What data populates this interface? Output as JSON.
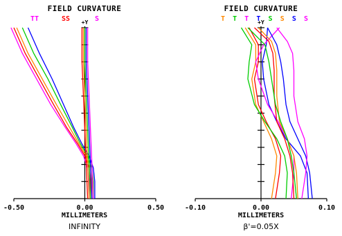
{
  "chart_data": [
    {
      "type": "line",
      "title": "FIELD CURVATURE",
      "xlabel": "MILLIMETERS",
      "caption": "INFINITY",
      "yaxis_label": "+Y",
      "xlim": [
        -0.5,
        0.5
      ],
      "ylim": [
        0,
        1
      ],
      "x_ticks": [
        "-0.50",
        "0.00",
        "0.50"
      ],
      "grid": false,
      "legend_labels": [
        {
          "text": "TT",
          "color": "#ff00ff"
        },
        {
          "text": "SS",
          "color": "#ff0000"
        },
        {
          "text": "S",
          "color": "#ff00ff"
        }
      ],
      "series": [
        {
          "color": "#ff0000",
          "points": [
            [
              -0.5,
              1.0
            ],
            [
              -0.42,
              0.85
            ],
            [
              -0.32,
              0.7
            ],
            [
              -0.22,
              0.55
            ],
            [
              -0.13,
              0.42
            ],
            [
              -0.05,
              0.32
            ],
            [
              0.0,
              0.25
            ],
            [
              0.03,
              0.18
            ],
            [
              0.04,
              0.1
            ],
            [
              0.04,
              0.0
            ]
          ]
        },
        {
          "color": "#ff8800",
          "points": [
            [
              -0.48,
              1.0
            ],
            [
              -0.4,
              0.85
            ],
            [
              -0.3,
              0.7
            ],
            [
              -0.2,
              0.55
            ],
            [
              -0.11,
              0.42
            ],
            [
              -0.04,
              0.32
            ],
            [
              0.01,
              0.25
            ],
            [
              0.04,
              0.18
            ],
            [
              0.05,
              0.1
            ],
            [
              0.05,
              0.0
            ]
          ]
        },
        {
          "color": "#00cc00",
          "points": [
            [
              -0.44,
              1.0
            ],
            [
              -0.36,
              0.85
            ],
            [
              -0.26,
              0.7
            ],
            [
              -0.17,
              0.55
            ],
            [
              -0.09,
              0.42
            ],
            [
              -0.03,
              0.32
            ],
            [
              0.02,
              0.25
            ],
            [
              0.05,
              0.18
            ],
            [
              0.06,
              0.1
            ],
            [
              0.06,
              0.0
            ]
          ]
        },
        {
          "color": "#0000ff",
          "points": [
            [
              -0.4,
              1.0
            ],
            [
              -0.32,
              0.85
            ],
            [
              -0.23,
              0.7
            ],
            [
              -0.15,
              0.55
            ],
            [
              -0.08,
              0.42
            ],
            [
              -0.02,
              0.32
            ],
            [
              0.03,
              0.25
            ],
            [
              0.06,
              0.18
            ],
            [
              0.07,
              0.1
            ],
            [
              0.07,
              0.0
            ]
          ]
        },
        {
          "color": "#ff00ff",
          "points": [
            [
              -0.52,
              1.0
            ],
            [
              -0.44,
              0.85
            ],
            [
              -0.34,
              0.7
            ],
            [
              -0.24,
              0.55
            ],
            [
              -0.14,
              0.42
            ],
            [
              -0.06,
              0.32
            ],
            [
              -0.01,
              0.25
            ],
            [
              0.02,
              0.18
            ],
            [
              0.03,
              0.1
            ],
            [
              0.03,
              0.0
            ]
          ]
        },
        {
          "color": "#ff0000",
          "points": [
            [
              -0.02,
              1.0
            ],
            [
              -0.02,
              0.8
            ],
            [
              -0.01,
              0.6
            ],
            [
              0.0,
              0.4
            ],
            [
              0.01,
              0.2
            ],
            [
              0.02,
              0.0
            ]
          ]
        },
        {
          "color": "#ff8800",
          "points": [
            [
              -0.01,
              1.0
            ],
            [
              -0.01,
              0.8
            ],
            [
              0.0,
              0.6
            ],
            [
              0.01,
              0.4
            ],
            [
              0.02,
              0.2
            ],
            [
              0.03,
              0.0
            ]
          ]
        },
        {
          "color": "#00cc00",
          "points": [
            [
              0.0,
              1.0
            ],
            [
              0.0,
              0.8
            ],
            [
              0.01,
              0.6
            ],
            [
              0.02,
              0.4
            ],
            [
              0.03,
              0.2
            ],
            [
              0.04,
              0.0
            ]
          ]
        },
        {
          "color": "#0000ff",
          "points": [
            [
              0.01,
              1.0
            ],
            [
              0.01,
              0.8
            ],
            [
              0.02,
              0.6
            ],
            [
              0.03,
              0.4
            ],
            [
              0.04,
              0.2
            ],
            [
              0.05,
              0.0
            ]
          ]
        },
        {
          "color": "#ff00ff",
          "points": [
            [
              0.02,
              1.0
            ],
            [
              0.02,
              0.8
            ],
            [
              0.03,
              0.6
            ],
            [
              0.04,
              0.4
            ],
            [
              0.05,
              0.2
            ],
            [
              0.06,
              0.0
            ]
          ]
        }
      ]
    },
    {
      "type": "line",
      "title": "FIELD CURVATURE",
      "xlabel": "MILLIMETERS",
      "caption": "β'=0.05X",
      "yaxis_label": "+Y",
      "xlim": [
        -0.1,
        0.1
      ],
      "ylim": [
        0,
        1
      ],
      "x_ticks": [
        "-0.10",
        "0.00",
        "0.10"
      ],
      "grid": false,
      "legend_labels": [
        {
          "text": "T",
          "color": "#ff8800"
        },
        {
          "text": "T",
          "color": "#00cc00"
        },
        {
          "text": "T",
          "color": "#ff00ff"
        },
        {
          "text": "T",
          "color": "#0000ff"
        },
        {
          "text": "S",
          "color": "#00cc00"
        },
        {
          "text": "S",
          "color": "#ff8800"
        },
        {
          "text": "S",
          "color": "#0000ff"
        },
        {
          "text": "S",
          "color": "#ff00ff"
        }
      ],
      "series": [
        {
          "color": "#ff0000",
          "points": [
            [
              -0.018,
              1.0
            ],
            [
              -0.004,
              0.9
            ],
            [
              -0.004,
              0.8
            ],
            [
              -0.01,
              0.7
            ],
            [
              -0.004,
              0.55
            ],
            [
              0.008,
              0.45
            ],
            [
              0.022,
              0.35
            ],
            [
              0.03,
              0.25
            ],
            [
              0.028,
              0.15
            ],
            [
              0.022,
              0.0
            ]
          ]
        },
        {
          "color": "#ff8800",
          "points": [
            [
              -0.024,
              1.0
            ],
            [
              -0.008,
              0.9
            ],
            [
              -0.008,
              0.8
            ],
            [
              -0.014,
              0.7
            ],
            [
              -0.008,
              0.55
            ],
            [
              0.004,
              0.45
            ],
            [
              0.016,
              0.35
            ],
            [
              0.024,
              0.25
            ],
            [
              0.022,
              0.15
            ],
            [
              0.016,
              0.0
            ]
          ]
        },
        {
          "color": "#00cc00",
          "points": [
            [
              -0.03,
              1.0
            ],
            [
              -0.014,
              0.9
            ],
            [
              -0.018,
              0.8
            ],
            [
              -0.02,
              0.7
            ],
            [
              -0.01,
              0.55
            ],
            [
              0.006,
              0.45
            ],
            [
              0.024,
              0.35
            ],
            [
              0.036,
              0.25
            ],
            [
              0.04,
              0.15
            ],
            [
              0.038,
              0.0
            ]
          ]
        },
        {
          "color": "#0000ff",
          "points": [
            [
              0.01,
              1.0
            ],
            [
              0.008,
              0.9
            ],
            [
              0.002,
              0.8
            ],
            [
              0.004,
              0.7
            ],
            [
              0.012,
              0.55
            ],
            [
              0.024,
              0.45
            ],
            [
              0.038,
              0.35
            ],
            [
              0.06,
              0.25
            ],
            [
              0.07,
              0.15
            ],
            [
              0.072,
              0.0
            ]
          ]
        },
        {
          "color": "#ff00ff",
          "points": [
            [
              0.028,
              1.0
            ],
            [
              0.004,
              0.9
            ],
            [
              -0.008,
              0.8
            ],
            [
              -0.004,
              0.7
            ],
            [
              0.01,
              0.55
            ],
            [
              0.026,
              0.45
            ],
            [
              0.04,
              0.35
            ],
            [
              0.05,
              0.25
            ],
            [
              0.05,
              0.15
            ],
            [
              0.046,
              0.0
            ]
          ]
        },
        {
          "color": "#ff0000",
          "points": [
            [
              -0.01,
              1.0
            ],
            [
              0.012,
              0.92
            ],
            [
              0.018,
              0.85
            ],
            [
              0.02,
              0.75
            ],
            [
              0.02,
              0.6
            ],
            [
              0.024,
              0.45
            ],
            [
              0.036,
              0.35
            ],
            [
              0.044,
              0.25
            ],
            [
              0.048,
              0.15
            ],
            [
              0.05,
              0.0
            ]
          ]
        },
        {
          "color": "#ff8800",
          "points": [
            [
              -0.004,
              1.0
            ],
            [
              0.016,
              0.92
            ],
            [
              0.022,
              0.85
            ],
            [
              0.024,
              0.75
            ],
            [
              0.024,
              0.6
            ],
            [
              0.028,
              0.45
            ],
            [
              0.04,
              0.35
            ],
            [
              0.05,
              0.25
            ],
            [
              0.054,
              0.15
            ],
            [
              0.056,
              0.0
            ]
          ]
        },
        {
          "color": "#00cc00",
          "points": [
            [
              -0.02,
              1.0
            ],
            [
              0.006,
              0.9
            ],
            [
              0.012,
              0.8
            ],
            [
              0.016,
              0.7
            ],
            [
              0.022,
              0.55
            ],
            [
              0.03,
              0.45
            ],
            [
              0.04,
              0.35
            ],
            [
              0.046,
              0.25
            ],
            [
              0.05,
              0.15
            ],
            [
              0.054,
              0.0
            ]
          ]
        },
        {
          "color": "#0000ff",
          "points": [
            [
              0.01,
              1.0
            ],
            [
              0.024,
              0.9
            ],
            [
              0.03,
              0.8
            ],
            [
              0.034,
              0.7
            ],
            [
              0.038,
              0.55
            ],
            [
              0.044,
              0.45
            ],
            [
              0.056,
              0.35
            ],
            [
              0.068,
              0.25
            ],
            [
              0.074,
              0.15
            ],
            [
              0.078,
              0.0
            ]
          ]
        },
        {
          "color": "#ff00ff",
          "points": [
            [
              0.024,
              1.0
            ],
            [
              0.04,
              0.92
            ],
            [
              0.048,
              0.85
            ],
            [
              0.05,
              0.75
            ],
            [
              0.05,
              0.6
            ],
            [
              0.056,
              0.45
            ],
            [
              0.066,
              0.35
            ],
            [
              0.07,
              0.25
            ],
            [
              0.068,
              0.15
            ],
            [
              0.062,
              0.0
            ]
          ]
        }
      ]
    }
  ]
}
